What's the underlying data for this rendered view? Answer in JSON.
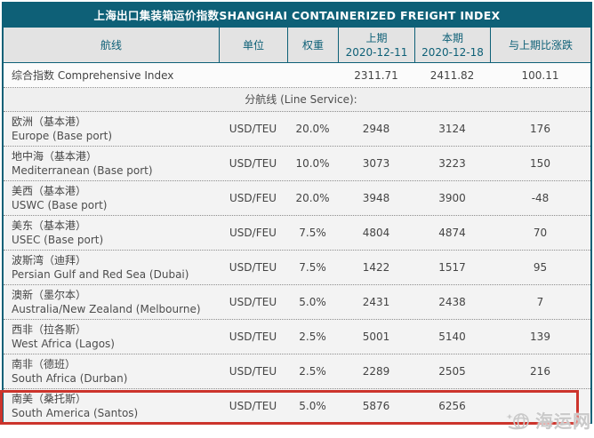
{
  "title": "上海出口集装箱运价指数SHANGHAI CONTAINERIZED FREIGHT INDEX",
  "columns": [
    {
      "label": "航线",
      "sub": ""
    },
    {
      "label": "单位",
      "sub": ""
    },
    {
      "label": "权重",
      "sub": ""
    },
    {
      "label": "上期",
      "sub": "2020-12-11"
    },
    {
      "label": "本期",
      "sub": "2020-12-18"
    },
    {
      "label": "与上期比涨跌",
      "sub": ""
    }
  ],
  "rows": [
    {
      "type": "comprehensive",
      "cn": "综合指数",
      "en": "Comprehensive Index",
      "unit": "",
      "weight": "",
      "prev": "2311.71",
      "curr": "2411.82",
      "change": "100.11",
      "highlight": false
    },
    {
      "type": "section",
      "cn": "分航线 (Line Service):",
      "en": "",
      "unit": "",
      "weight": "",
      "prev": "",
      "curr": "",
      "change": "",
      "highlight": false
    },
    {
      "type": "data",
      "cn": "欧洲（基本港）",
      "en": "Europe (Base port)",
      "unit": "USD/TEU",
      "weight": "20.0%",
      "prev": "2948",
      "curr": "3124",
      "change": "176",
      "highlight": false
    },
    {
      "type": "data",
      "cn": "地中海（基本港）",
      "en": "Mediterranean (Base port)",
      "unit": "USD/TEU",
      "weight": "10.0%",
      "prev": "3073",
      "curr": "3223",
      "change": "150",
      "highlight": false
    },
    {
      "type": "data",
      "cn": "美西（基本港）",
      "en": "USWC (Base port)",
      "unit": "USD/FEU",
      "weight": "20.0%",
      "prev": "3948",
      "curr": "3900",
      "change": "-48",
      "highlight": false
    },
    {
      "type": "data",
      "cn": "美东（基本港）",
      "en": "USEC (Base port)",
      "unit": "USD/FEU",
      "weight": "7.5%",
      "prev": "4804",
      "curr": "4874",
      "change": "70",
      "highlight": false
    },
    {
      "type": "data",
      "cn": "波斯湾（迪拜）",
      "en": "Persian Gulf and Red Sea (Dubai)",
      "unit": "USD/TEU",
      "weight": "7.5%",
      "prev": "1422",
      "curr": "1517",
      "change": "95",
      "highlight": false
    },
    {
      "type": "data",
      "cn": "澳新（墨尔本）",
      "en": "Australia/New Zealand (Melbourne)",
      "unit": "USD/TEU",
      "weight": "5.0%",
      "prev": "2431",
      "curr": "2438",
      "change": "7",
      "highlight": false
    },
    {
      "type": "data",
      "cn": "西非（拉各斯）",
      "en": "West Africa (Lagos)",
      "unit": "USD/TEU",
      "weight": "2.5%",
      "prev": "5001",
      "curr": "5140",
      "change": "139",
      "highlight": false
    },
    {
      "type": "data",
      "cn": "南非（德班）",
      "en": "South Africa (Durban)",
      "unit": "USD/TEU",
      "weight": "2.5%",
      "prev": "2289",
      "curr": "2505",
      "change": "216",
      "highlight": false
    },
    {
      "type": "data",
      "cn": "南美（桑托斯）",
      "en": "South America (Santos)",
      "unit": "USD/TEU",
      "weight": "5.0%",
      "prev": "5876",
      "curr": "6256",
      "change": "",
      "highlight": true
    }
  ],
  "watermark": {
    "text": "海运网",
    "icon": "globe-ship-logo"
  },
  "colors": {
    "header_teal": "#0e6077",
    "header_bg": "#e3e3e3",
    "row_bg": "#f3f3f3",
    "comp_bg": "#fbfbfb",
    "section_bg": "#efefef",
    "highlight_red": "#cc342c",
    "text": "#444444"
  },
  "chart_data": {
    "type": "table",
    "title": "上海出口集装箱运价指数SHANGHAI CONTAINERIZED FREIGHT INDEX",
    "columns": [
      "航线",
      "单位",
      "权重",
      "上期 2020-12-11",
      "本期 2020-12-18",
      "与上期比涨跌"
    ],
    "rows": [
      [
        "综合指数 Comprehensive Index",
        "",
        "",
        "2311.71",
        "2411.82",
        "100.11"
      ],
      [
        "分航线 (Line Service):",
        "",
        "",
        "",
        "",
        ""
      ],
      [
        "欧洲（基本港） Europe (Base port)",
        "USD/TEU",
        "20.0%",
        "2948",
        "3124",
        "176"
      ],
      [
        "地中海（基本港） Mediterranean (Base port)",
        "USD/TEU",
        "10.0%",
        "3073",
        "3223",
        "150"
      ],
      [
        "美西（基本港） USWC (Base port)",
        "USD/FEU",
        "20.0%",
        "3948",
        "3900",
        "-48"
      ],
      [
        "美东（基本港） USEC (Base port)",
        "USD/FEU",
        "7.5%",
        "4804",
        "4874",
        "70"
      ],
      [
        "波斯湾（迪拜） Persian Gulf and Red Sea (Dubai)",
        "USD/TEU",
        "7.5%",
        "1422",
        "1517",
        "95"
      ],
      [
        "澳新（墨尔本） Australia/New Zealand (Melbourne)",
        "USD/TEU",
        "5.0%",
        "2431",
        "2438",
        "7"
      ],
      [
        "西非（拉各斯） West Africa (Lagos)",
        "USD/TEU",
        "2.5%",
        "5001",
        "5140",
        "139"
      ],
      [
        "南非（德班） South Africa (Durban)",
        "USD/TEU",
        "2.5%",
        "2289",
        "2505",
        "216"
      ],
      [
        "南美（桑托斯） South America (Santos)",
        "USD/TEU",
        "5.0%",
        "5876",
        "6256",
        ""
      ]
    ]
  }
}
